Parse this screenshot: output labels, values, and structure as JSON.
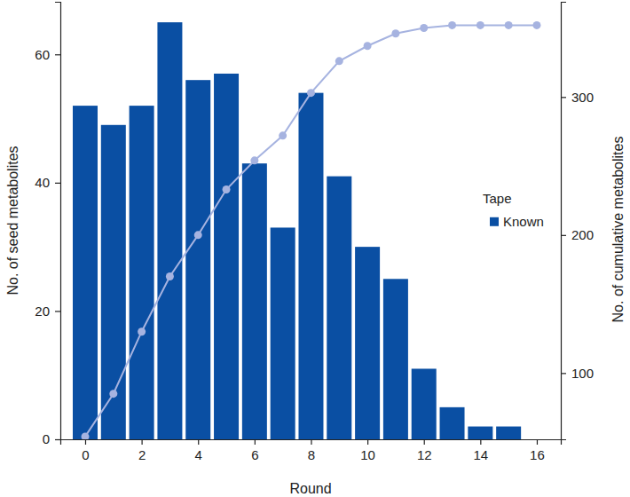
{
  "chart_data": {
    "type": "bar",
    "x_label": "Round",
    "y_label": "No. of seed metabolites",
    "y2_label": "No. of cumulative metabolites",
    "legend_title": "Tape",
    "legend": "right",
    "x": [
      0,
      1,
      2,
      3,
      4,
      5,
      6,
      7,
      8,
      9,
      10,
      11,
      12,
      13,
      14,
      15,
      16
    ],
    "xlim": [
      -0.88,
      16.85
    ],
    "xticks": [
      0,
      2,
      4,
      6,
      8,
      10,
      12,
      14,
      16
    ],
    "ylim": [
      0,
      68.2
    ],
    "yticks": [
      0,
      20,
      40,
      60
    ],
    "y2lim": [
      52,
      369
    ],
    "y2ticks": [
      100,
      200,
      300
    ],
    "grid": false,
    "series": [
      {
        "name": "Known",
        "type": "bar",
        "color": "#0a4fa3",
        "values": [
          52,
          49,
          52,
          65,
          56,
          57,
          43,
          33,
          54,
          41,
          30,
          25,
          11,
          5,
          2,
          2,
          null
        ]
      },
      {
        "type": "line",
        "axis": "y2",
        "color": "#a6b3e0",
        "marker": "circle",
        "values": [
          54,
          85,
          130,
          170,
          200,
          233,
          254,
          272,
          303,
          326,
          337,
          346,
          350,
          352,
          352,
          352,
          352
        ]
      }
    ]
  }
}
